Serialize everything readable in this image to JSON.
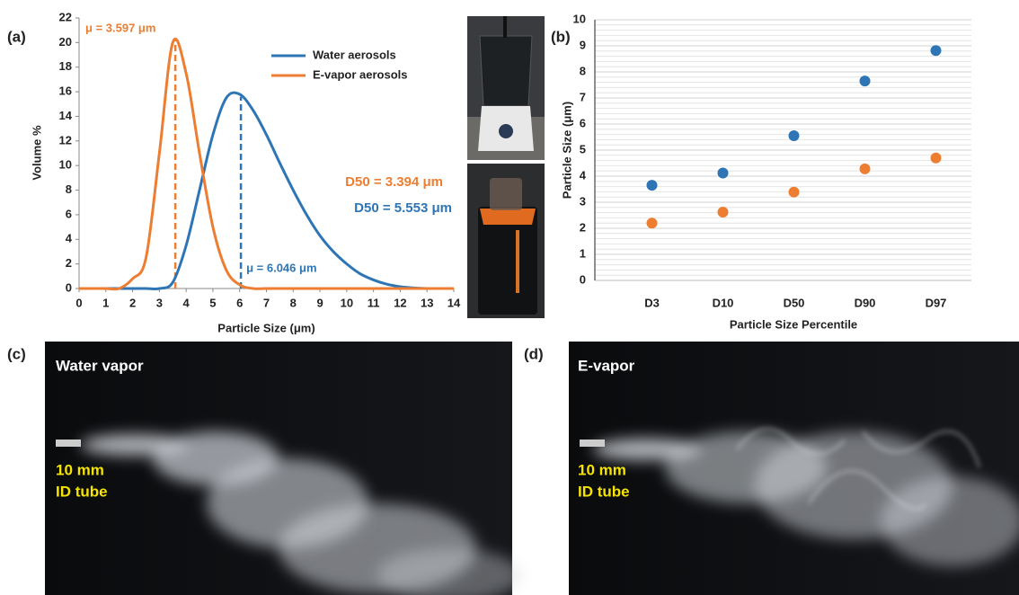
{
  "chart_data": [
    {
      "type": "line",
      "panel_label": "(a)",
      "xlabel": "Particle Size (μm)",
      "ylabel": "Volume %",
      "x": [
        0,
        0.5,
        1,
        1.5,
        2,
        2.5,
        3,
        3.5,
        4,
        4.5,
        5,
        5.5,
        6,
        6.5,
        7,
        7.5,
        8,
        8.5,
        9,
        9.5,
        10,
        10.5,
        11,
        11.5,
        12,
        12.5,
        13,
        13.5,
        14
      ],
      "series": [
        {
          "name": "Water aerosols",
          "color": "#2e75b6",
          "values": [
            0,
            0,
            0,
            0,
            0,
            0,
            0,
            0.5,
            3.5,
            8,
            12.5,
            15.5,
            15.8,
            14.5,
            12.5,
            10.2,
            8,
            6,
            4.3,
            3,
            2,
            1.2,
            0.7,
            0.35,
            0.15,
            0.05,
            0,
            0,
            0
          ]
        },
        {
          "name": "E-vapor aerosols",
          "color": "#ed7d31",
          "values": [
            0,
            0,
            0,
            0,
            0.8,
            2.5,
            11,
            20,
            17.5,
            11,
            5,
            1.5,
            0.3,
            0,
            0,
            0,
            0,
            0,
            0,
            0,
            0,
            0,
            0,
            0,
            0,
            0,
            0,
            0,
            0
          ]
        }
      ],
      "xlim": [
        0,
        14
      ],
      "xticks": [
        0,
        1,
        2,
        3,
        4,
        5,
        6,
        7,
        8,
        9,
        10,
        11,
        12,
        13,
        14
      ],
      "ylim": [
        0,
        22
      ],
      "yticks": [
        0,
        2,
        4,
        6,
        8,
        10,
        12,
        14,
        16,
        18,
        20,
        22
      ],
      "legend": "upper right",
      "vlines": [
        {
          "x": 3.597,
          "y": 20.2,
          "color": "#ed7d31",
          "label": "μ = 3.597 μm"
        },
        {
          "x": 6.046,
          "y": 15.6,
          "color": "#2e75b6",
          "label": "μ = 6.046 μm"
        }
      ],
      "annotations": [
        {
          "text": "D50 = 3.394 μm",
          "color": "#ed7d31"
        },
        {
          "text": "D50 = 5.553 μm",
          "color": "#2e75b6"
        }
      ]
    },
    {
      "type": "scatter",
      "panel_label": "(b)",
      "xlabel": "Particle Size Percentile",
      "ylabel": "Particle Size (μm)",
      "categories": [
        "D3",
        "D10",
        "D50",
        "D90",
        "D97"
      ],
      "series": [
        {
          "color": "#2e75b6",
          "values": [
            3.65,
            4.12,
            5.55,
            7.65,
            8.82
          ]
        },
        {
          "color": "#ed7d31",
          "values": [
            2.2,
            2.62,
            3.39,
            4.28,
            4.7
          ]
        }
      ],
      "ylim": [
        0,
        10
      ],
      "yticks": [
        0,
        1,
        2,
        3,
        4,
        5,
        6,
        7,
        8,
        9,
        10
      ],
      "grid": true,
      "minor_grid_step": 0.2
    }
  ],
  "panels": [
    {
      "label": "(c)",
      "caption": "Water vapor",
      "tube_label": [
        "10 mm",
        "ID tube"
      ]
    },
    {
      "label": "(d)",
      "caption": "E-vapor",
      "tube_label": [
        "10 mm",
        "ID tube"
      ]
    }
  ]
}
